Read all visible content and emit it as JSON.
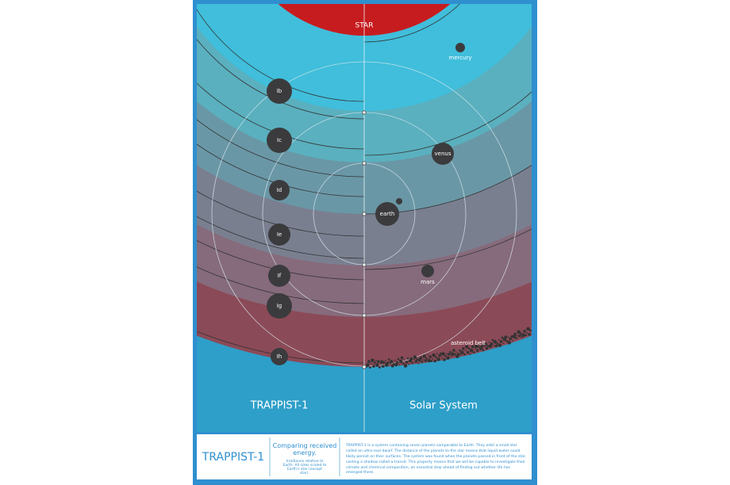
{
  "star": "STAR",
  "trappist_planets": [
    "Ib",
    "Ic",
    "Id",
    "Ie",
    "If",
    "Ig",
    "Ih"
  ],
  "solar_planets": [
    "mercury",
    "venus",
    "earth",
    "mars"
  ],
  "asteroid_label": "asteroid belt",
  "left_title": "TRAPPIST-1",
  "right_title": "Solar System",
  "footer": {
    "title": "TRAPPIST-1",
    "subtitle": "Comparing received energy.",
    "note": "Irradiance relative to Earth. All sizes scaled to Earth's star (except star).",
    "description": "TRAPPIST-1 is a system containing seven planets comparable to Earth. They orbit a small star called an ultra-cool dwarf. The distance of the planets to the star means that liquid water could likely persist on their surfaces. The system was found when the planets passed in front of the star, casting a shadow called a transit. This property means that we will be capable to investigate their climate and chemical composition, an essential step ahead of finding out whether life has emerged there."
  }
}
